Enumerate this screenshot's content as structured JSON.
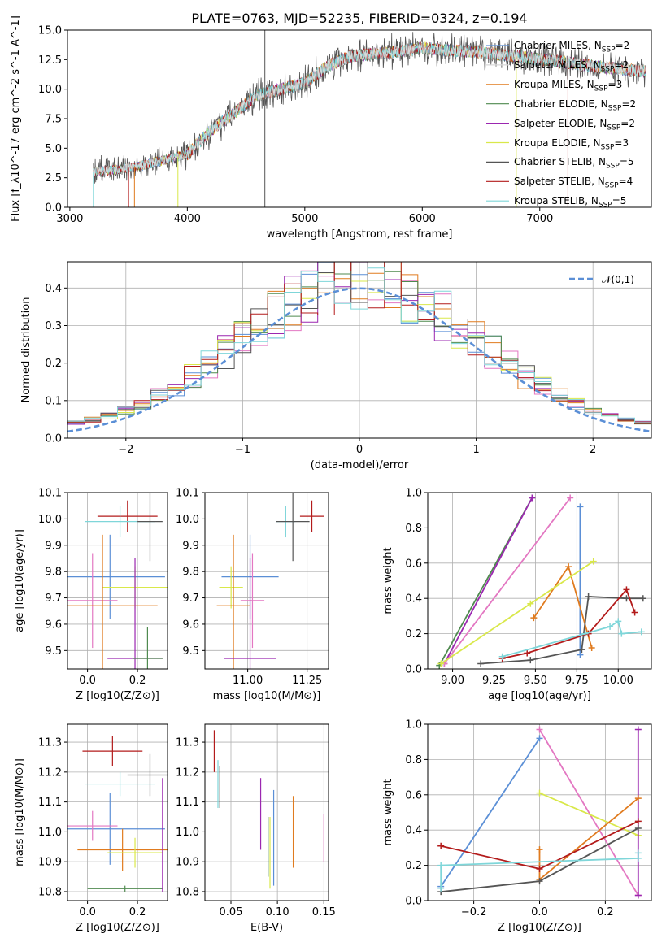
{
  "colors": {
    "models": [
      "#5b8fd6",
      "#d9d9d9",
      "#e07b1f",
      "#4f8a4f",
      "#9b27b0",
      "#d9e84a",
      "#555555",
      "#b31b1b",
      "#7fd6d9"
    ],
    "pink": "#e377c2",
    "violet": "#8a2be2",
    "lime": "#c6e24a"
  },
  "legend": [
    "Chabrier MILES, N<sub>SSP</sub>=2",
    "Salpeter MILES, N<sub>SSP</sub>=2",
    "Kroupa MILES, N<sub>SSP</sub>=3",
    "Chabrier ELODIE, N<sub>SSP</sub>=2",
    "Salpeter ELODIE, N<sub>SSP</sub>=2",
    "Kroupa ELODIE, N<sub>SSP</sub>=3",
    "Chabrier STELIB, N<sub>SSP</sub>=5",
    "Salpeter STELIB, N<sub>SSP</sub>=4",
    "Kroupa STELIB, N<sub>SSP</sub>=5"
  ],
  "chart_data": [
    {
      "type": "line",
      "title": "PLATE=0763, MJD=52235, FIBERID=0324, z=0.194",
      "xlabel": "wavelength [Angstrom, rest frame]",
      "ylabel": "Flux [f_λ10^-17 erg cm^-2 s^-1 A^-1]",
      "xlim": [
        2980,
        7950
      ],
      "ylim": [
        0,
        15
      ],
      "xticks": [
        3000,
        4000,
        5000,
        6000,
        7000
      ],
      "yticks": [
        0,
        2.5,
        5,
        7.5,
        10,
        12.5,
        15
      ],
      "ytick_labels": [
        "0.0",
        "2.5",
        "5.0",
        "7.5",
        "10.0",
        "12.5",
        "15.0"
      ],
      "series_anchor_x": [
        3200,
        3400,
        3600,
        3800,
        4000,
        4200,
        4400,
        4600,
        4800,
        5000,
        5200,
        5400,
        5600,
        5800,
        6000,
        6200,
        6400,
        6600,
        6800,
        7000,
        7200,
        7400,
        7600,
        7900
      ],
      "series_anchor_y": [
        3.0,
        3.2,
        3.5,
        4.0,
        4.5,
        6.5,
        8.0,
        9.5,
        10.0,
        10.5,
        12.0,
        12.8,
        13.0,
        13.2,
        13.5,
        13.3,
        13.2,
        13.0,
        12.8,
        12.5,
        12.3,
        12.0,
        11.8,
        11.5
      ]
    },
    {
      "type": "line",
      "xlabel": "(data-model)/error",
      "ylabel": "Normed distribution",
      "xlim": [
        -2.5,
        2.5
      ],
      "ylim": [
        0,
        0.47
      ],
      "xticks": [
        -2,
        -1,
        0,
        1,
        2
      ],
      "xtick_labels": [
        "−2",
        "−1",
        "0",
        "1",
        "2"
      ],
      "yticks": [
        0,
        0.1,
        0.2,
        0.3,
        0.4
      ],
      "ytick_labels": [
        "0.0",
        "0.1",
        "0.2",
        "0.3",
        "0.4"
      ],
      "series": [
        {
          "name": "𝒩(0,1)",
          "kind": "gaussian",
          "mu": 0,
          "sigma": 1
        }
      ],
      "legend_location": "top-right"
    },
    {
      "type": "scatter",
      "xlabel": "Z [log10(Z/Z⊙)]",
      "ylabel": "age [log10(age/yr)]",
      "xlim": [
        -0.08,
        0.32
      ],
      "ylim": [
        9.43,
        10.1
      ],
      "xticks": [
        0,
        0.2
      ],
      "xtick_labels": [
        "0.0",
        "0.2"
      ],
      "yticks": [
        9.5,
        9.6,
        9.7,
        9.8,
        9.9,
        10.0,
        10.1
      ],
      "ytick_labels": [
        "9.5",
        "9.6",
        "9.7",
        "9.8",
        "9.9",
        "10.0",
        "10.1"
      ],
      "points": [
        {
          "x": 0.16,
          "y": 10.01,
          "xerr": 0.12,
          "yerr": 0.06,
          "c": 7
        },
        {
          "x": 0.13,
          "y": 9.99,
          "xerr": 0.14,
          "yerr": 0.06,
          "c": 8
        },
        {
          "x": 0.25,
          "y": 9.99,
          "xerr": 0.05,
          "yerr": 0.15,
          "c": 6
        },
        {
          "x": 0.09,
          "y": 9.78,
          "xerr": 0.22,
          "yerr": 0.16,
          "c": 0
        },
        {
          "x": 0.19,
          "y": 9.74,
          "xerr": 0.13,
          "yerr": 0.08,
          "c": 5
        },
        {
          "x": 0.02,
          "y": 9.69,
          "xerr": 0.1,
          "yerr": 0.18,
          "c": "pink"
        },
        {
          "x": 0.06,
          "y": 9.67,
          "xerr": 0.22,
          "yerr": 0.27,
          "c": 2
        },
        {
          "x": 0.19,
          "y": 9.47,
          "xerr": 0.11,
          "yerr": 0.38,
          "c": 4
        },
        {
          "x": 0.24,
          "y": 9.47,
          "xerr": 0.06,
          "yerr": 0.12,
          "c": 3
        }
      ]
    },
    {
      "type": "scatter",
      "xlabel": "mass [log10(M/M⊙)]",
      "ylabel": "",
      "xlim": [
        10.82,
        11.34
      ],
      "ylim": [
        9.43,
        10.1
      ],
      "xticks": [
        11.0,
        11.25
      ],
      "xtick_labels": [
        "11.00",
        "11.25"
      ],
      "yticks": [
        9.5,
        9.6,
        9.7,
        9.8,
        9.9,
        10.0,
        10.1
      ],
      "ytick_labels": [
        "9.5",
        "9.6",
        "9.7",
        "9.8",
        "9.9",
        "10.0",
        "10.1"
      ],
      "points": [
        {
          "x": 11.27,
          "y": 10.01,
          "xerr": 0.05,
          "yerr": 0.06,
          "c": 7
        },
        {
          "x": 11.16,
          "y": 9.99,
          "xerr": 0.04,
          "yerr": 0.06,
          "c": 8
        },
        {
          "x": 11.19,
          "y": 9.99,
          "xerr": 0.07,
          "yerr": 0.15,
          "c": 6
        },
        {
          "x": 11.01,
          "y": 9.78,
          "xerr": 0.12,
          "yerr": 0.16,
          "c": 0
        },
        {
          "x": 10.93,
          "y": 9.74,
          "xerr": 0.05,
          "yerr": 0.08,
          "c": 5
        },
        {
          "x": 11.02,
          "y": 9.69,
          "xerr": 0.05,
          "yerr": 0.18,
          "c": "pink"
        },
        {
          "x": 10.94,
          "y": 9.67,
          "xerr": 0.07,
          "yerr": 0.27,
          "c": 2
        },
        {
          "x": 11.01,
          "y": 9.47,
          "xerr": 0.11,
          "yerr": 0.38,
          "c": 4
        },
        {
          "x": 10.81,
          "y": 9.47,
          "xerr": 0.01,
          "yerr": 0.12,
          "c": 3
        }
      ]
    },
    {
      "type": "line",
      "xlabel": "age [log10(age/yr)]",
      "ylabel": "mass weight",
      "xlim": [
        8.85,
        10.2
      ],
      "ylim": [
        0,
        1.0
      ],
      "xticks": [
        9.0,
        9.25,
        9.5,
        9.75,
        10.0
      ],
      "xtick_labels": [
        "9.00",
        "9.25",
        "9.50",
        "9.75",
        "10.00"
      ],
      "yticks": [
        0,
        0.2,
        0.4,
        0.6,
        0.8,
        1.0
      ],
      "ytick_labels": [
        "0.0",
        "0.2",
        "0.4",
        "0.6",
        "0.8",
        "1.0"
      ],
      "series": [
        {
          "c": 3,
          "x": [
            8.92,
            9.48
          ],
          "y": [
            0.02,
            0.97
          ]
        },
        {
          "c": 4,
          "x": [
            8.95,
            9.48
          ],
          "y": [
            0.03,
            0.97
          ]
        },
        {
          "c": "pink",
          "x": [
            8.95,
            9.71
          ],
          "y": [
            0.03,
            0.97
          ]
        },
        {
          "c": 0,
          "x": [
            9.77,
            9.77
          ],
          "y": [
            0.08,
            0.92
          ]
        },
        {
          "c": 2,
          "x": [
            9.49,
            9.7,
            9.84
          ],
          "y": [
            0.29,
            0.58,
            0.12
          ]
        },
        {
          "c": 5,
          "x": [
            8.93,
            9.47,
            9.85
          ],
          "y": [
            0.03,
            0.37,
            0.61
          ]
        },
        {
          "c": 6,
          "x": [
            9.17,
            9.47,
            9.78,
            9.82,
            10.05,
            10.15
          ],
          "y": [
            0.03,
            0.05,
            0.11,
            0.41,
            0.4,
            0.4
          ]
        },
        {
          "c": 7,
          "x": [
            9.3,
            9.45,
            9.82,
            10.05,
            10.1
          ],
          "y": [
            0.06,
            0.09,
            0.2,
            0.45,
            0.32
          ]
        },
        {
          "c": 8,
          "x": [
            9.3,
            9.8,
            9.95,
            10.0,
            10.02,
            10.14
          ],
          "y": [
            0.07,
            0.2,
            0.24,
            0.27,
            0.2,
            0.21
          ]
        }
      ]
    },
    {
      "type": "scatter",
      "xlabel": "Z [log10(Z/Z⊙)]",
      "ylabel": "mass [log10(M/M⊙)]",
      "xlim": [
        -0.08,
        0.32
      ],
      "ylim": [
        10.77,
        11.36
      ],
      "xticks": [
        0,
        0.2
      ],
      "xtick_labels": [
        "0.0",
        "0.2"
      ],
      "yticks": [
        10.8,
        10.9,
        11.0,
        11.1,
        11.2,
        11.3
      ],
      "ytick_labels": [
        "10.8",
        "10.9",
        "11.0",
        "11.1",
        "11.2",
        "11.3"
      ],
      "points": [
        {
          "x": 0.1,
          "y": 11.27,
          "xerr": 0.12,
          "yerr": 0.05,
          "c": 7
        },
        {
          "x": 0.13,
          "y": 11.16,
          "xerr": 0.14,
          "yerr": 0.04,
          "c": 8
        },
        {
          "x": 0.25,
          "y": 11.19,
          "xerr": 0.09,
          "yerr": 0.07,
          "c": 6
        },
        {
          "x": 0.09,
          "y": 11.01,
          "xerr": 0.22,
          "yerr": 0.12,
          "c": 0
        },
        {
          "x": 0.02,
          "y": 11.02,
          "xerr": 0.1,
          "yerr": 0.05,
          "c": "pink"
        },
        {
          "x": 0.14,
          "y": 10.94,
          "xerr": 0.18,
          "yerr": 0.07,
          "c": 2
        },
        {
          "x": 0.19,
          "y": 10.93,
          "xerr": 0.11,
          "yerr": 0.05,
          "c": 5
        },
        {
          "x": 0.15,
          "y": 10.81,
          "xerr": 0.15,
          "yerr": 0.01,
          "c": 3
        },
        {
          "x": 0.3,
          "y": 10.99,
          "xerr": 0.0,
          "yerr": 0.19,
          "c": 4
        }
      ]
    },
    {
      "type": "scatter",
      "xlabel": "E(B-V)",
      "ylabel": "",
      "xlim": [
        0.022,
        0.155
      ],
      "ylim": [
        10.77,
        11.36
      ],
      "xticks": [
        0.05,
        0.1,
        0.15
      ],
      "xtick_labels": [
        "0.05",
        "0.10",
        "0.15"
      ],
      "yticks": [
        10.8,
        10.9,
        11.0,
        11.1,
        11.2,
        11.3
      ],
      "ytick_labels": [
        "10.8",
        "10.9",
        "11.0",
        "11.1",
        "11.2",
        "11.3"
      ],
      "points": [
        {
          "x": 0.032,
          "y": 11.27,
          "xerr": 0,
          "yerr": 0.07,
          "c": 7
        },
        {
          "x": 0.036,
          "y": 11.16,
          "xerr": 0,
          "yerr": 0.08,
          "c": 8
        },
        {
          "x": 0.038,
          "y": 11.15,
          "xerr": 0,
          "yerr": 0.07,
          "c": 6
        },
        {
          "x": 0.082,
          "y": 11.06,
          "xerr": 0,
          "yerr": 0.12,
          "c": 4
        },
        {
          "x": 0.09,
          "y": 10.95,
          "xerr": 0,
          "yerr": 0.1,
          "c": 3
        },
        {
          "x": 0.092,
          "y": 10.93,
          "xerr": 0,
          "yerr": 0.12,
          "c": 5
        },
        {
          "x": 0.096,
          "y": 10.98,
          "xerr": 0,
          "yerr": 0.16,
          "c": 0
        },
        {
          "x": 0.117,
          "y": 11.0,
          "xerr": 0,
          "yerr": 0.12,
          "c": 2
        },
        {
          "x": 0.15,
          "y": 10.98,
          "xerr": 0,
          "yerr": 0.08,
          "c": "pink"
        }
      ]
    },
    {
      "type": "line",
      "xlabel": "Z [log10(Z/Z⊙)]",
      "ylabel": "mass weight",
      "xlim": [
        -0.34,
        0.34
      ],
      "ylim": [
        0,
        1.0
      ],
      "xticks": [
        -0.2,
        0,
        0.2
      ],
      "xtick_labels": [
        "−0.2",
        "0.0",
        "0.2"
      ],
      "yticks": [
        0,
        0.2,
        0.4,
        0.6,
        0.8,
        1.0
      ],
      "ytick_labels": [
        "0.0",
        "0.2",
        "0.4",
        "0.6",
        "0.8",
        "1.0"
      ],
      "series": [
        {
          "c": 0,
          "x": [
            -0.3,
            0.0
          ],
          "y": [
            0.08,
            0.92
          ]
        },
        {
          "c": "pink",
          "x": [
            0.0,
            0.3
          ],
          "y": [
            0.97,
            0.03
          ]
        },
        {
          "c": 5,
          "x": [
            0.0,
            0.3
          ],
          "y": [
            0.61,
            0.37
          ]
        },
        {
          "c": 4,
          "x": [
            0.3,
            0.3
          ],
          "y": [
            0.03,
            0.97
          ]
        },
        {
          "c": 2,
          "x": [
            0.0,
            0.0,
            0.3
          ],
          "y": [
            0.29,
            0.12,
            0.58
          ]
        },
        {
          "c": 6,
          "x": [
            -0.3,
            0.0,
            0.3
          ],
          "y": [
            0.05,
            0.11,
            0.41
          ]
        },
        {
          "c": 7,
          "x": [
            -0.3,
            0.0,
            0.3
          ],
          "y": [
            0.31,
            0.18,
            0.45
          ]
        },
        {
          "c": 8,
          "x": [
            -0.3,
            -0.3,
            0.3,
            0.3
          ],
          "y": [
            0.07,
            0.2,
            0.24,
            0.27
          ]
        }
      ]
    }
  ]
}
